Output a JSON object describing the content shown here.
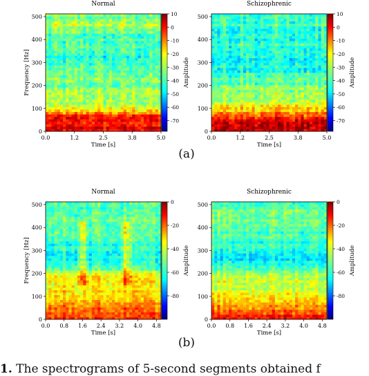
{
  "figure": {
    "caption_number": "1.",
    "caption_text": "The spectrograms of 5-second segments obtained f"
  },
  "chart_data": [
    {
      "type": "heatmap",
      "panel": "(a)",
      "title": "Normal",
      "xlabel": "Time [s]",
      "ylabel": "Frequency [Hz]",
      "xlim": [
        0,
        5.0
      ],
      "ylim": [
        0,
        512
      ],
      "xticks": [
        "0.0",
        "1.2",
        "2.5",
        "3.8",
        "5.0"
      ],
      "xtick_values": [
        0,
        1.25,
        2.5,
        3.75,
        5.0
      ],
      "yticks": [
        "0",
        "100",
        "200",
        "300",
        "400",
        "500"
      ],
      "ytick_values": [
        0,
        100,
        200,
        300,
        400,
        500
      ],
      "colorbar": {
        "label": "Amplitude",
        "range": [
          -78,
          10
        ],
        "ticks": [
          "10",
          "0",
          "-10",
          "-20",
          "-30",
          "-40",
          "-50",
          "-60",
          "-70"
        ],
        "tick_values": [
          10,
          0,
          -10,
          -20,
          -30,
          -40,
          -50,
          -60,
          -70
        ]
      },
      "bands": [
        [
          0,
          0
        ],
        [
          40,
          -2
        ],
        [
          70,
          -5
        ],
        [
          95,
          -20
        ],
        [
          130,
          -32
        ],
        [
          175,
          -30
        ],
        [
          200,
          -34
        ],
        [
          260,
          -38
        ],
        [
          300,
          -42
        ],
        [
          360,
          -40
        ],
        [
          420,
          -38
        ],
        [
          460,
          -30
        ],
        [
          512,
          -36
        ]
      ],
      "hotspots": []
    },
    {
      "type": "heatmap",
      "panel": "(a)",
      "title": "Schizophrenic",
      "xlabel": "Time [s]",
      "ylabel": "",
      "xlim": [
        0,
        5.0
      ],
      "ylim": [
        0,
        512
      ],
      "xticks": [
        "0.0",
        "1.2",
        "2.5",
        "3.8",
        "5.0"
      ],
      "xtick_values": [
        0,
        1.25,
        2.5,
        3.75,
        5.0
      ],
      "yticks": [
        "0",
        "100",
        "200",
        "300",
        "400",
        "500"
      ],
      "ytick_values": [
        0,
        100,
        200,
        300,
        400,
        500
      ],
      "colorbar": {
        "label": "Amplitude",
        "range": [
          -78,
          10
        ],
        "ticks": [
          "10",
          "0",
          "-10",
          "-20",
          "-30",
          "-40",
          "-50",
          "-60",
          "-70"
        ],
        "tick_values": [
          10,
          0,
          -10,
          -20,
          -30,
          -40,
          -50,
          -60,
          -70
        ]
      },
      "bands": [
        [
          0,
          2
        ],
        [
          30,
          4
        ],
        [
          60,
          -5
        ],
        [
          90,
          -18
        ],
        [
          130,
          -28
        ],
        [
          200,
          -35
        ],
        [
          260,
          -42
        ],
        [
          300,
          -45
        ],
        [
          360,
          -40
        ],
        [
          420,
          -42
        ],
        [
          470,
          -38
        ],
        [
          512,
          -40
        ]
      ],
      "hotspots": []
    },
    {
      "type": "heatmap",
      "panel": "(b)",
      "title": "Normal",
      "xlabel": "Time [s]",
      "ylabel": "Frequency [Hz]",
      "xlim": [
        0,
        5.0
      ],
      "ylim": [
        0,
        512
      ],
      "xticks": [
        "0.0",
        "0.8",
        "1.6",
        "2.4",
        "3.2",
        "4.0",
        "4.8"
      ],
      "xtick_values": [
        0,
        0.8,
        1.6,
        2.4,
        3.2,
        4.0,
        4.8
      ],
      "yticks": [
        "0",
        "100",
        "200",
        "300",
        "400",
        "500"
      ],
      "ytick_values": [
        0,
        100,
        200,
        300,
        400,
        500
      ],
      "colorbar": {
        "label": "Amplitude",
        "range": [
          -100,
          0
        ],
        "ticks": [
          "0",
          "-20",
          "-40",
          "-60",
          "-80"
        ],
        "tick_values": [
          0,
          -20,
          -40,
          -60,
          -80
        ]
      },
      "bands": [
        [
          0,
          -15
        ],
        [
          60,
          -25
        ],
        [
          120,
          -35
        ],
        [
          190,
          -38
        ],
        [
          220,
          -55
        ],
        [
          260,
          -60
        ],
        [
          330,
          -58
        ],
        [
          380,
          -55
        ],
        [
          420,
          -52
        ],
        [
          470,
          -56
        ],
        [
          512,
          -50
        ]
      ],
      "hotspots": [
        [
          1.6,
          0.3
        ],
        [
          3.5,
          0.3
        ]
      ]
    },
    {
      "type": "heatmap",
      "panel": "(b)",
      "title": "Schizophrenic",
      "xlabel": "Time [s]",
      "ylabel": "",
      "xlim": [
        0,
        5.0
      ],
      "ylim": [
        0,
        512
      ],
      "xticks": [
        "0.0",
        "0.8",
        "1.6",
        "2.4",
        "3.2",
        "4.0",
        "4.8"
      ],
      "xtick_values": [
        0,
        0.8,
        1.6,
        2.4,
        3.2,
        4.0,
        4.8
      ],
      "yticks": [
        "0",
        "100",
        "200",
        "300",
        "400",
        "500"
      ],
      "ytick_values": [
        0,
        100,
        200,
        300,
        400,
        500
      ],
      "colorbar": {
        "label": "Amplitude",
        "range": [
          -100,
          0
        ],
        "ticks": [
          "0",
          "-20",
          "-40",
          "-60",
          "-80"
        ],
        "tick_values": [
          0,
          -20,
          -40,
          -60,
          -80
        ]
      },
      "bands": [
        [
          0,
          -12
        ],
        [
          60,
          -28
        ],
        [
          120,
          -40
        ],
        [
          190,
          -42
        ],
        [
          220,
          -55
        ],
        [
          260,
          -65
        ],
        [
          330,
          -58
        ],
        [
          400,
          -55
        ],
        [
          470,
          -50
        ],
        [
          512,
          -58
        ]
      ],
      "hotspots": []
    }
  ]
}
